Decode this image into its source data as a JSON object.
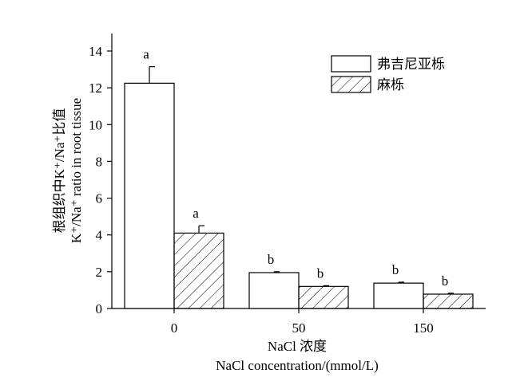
{
  "chart_data": {
    "type": "bar",
    "ylabel_zh": "根组织中K⁺/Na⁺比值",
    "ylabel_en": "K⁺/Na⁺ ratio in root tissue",
    "xlabel_zh": "NaCl 浓度",
    "xlabel_en": "NaCl concentration/(mmol/L)",
    "ylim": [
      0,
      15
    ],
    "yticks": [
      0,
      2,
      4,
      6,
      8,
      10,
      12,
      14
    ],
    "categories": [
      "0",
      "50",
      "150"
    ],
    "series": [
      {
        "name": "弗吉尼亚栎",
        "pattern": "open",
        "values": [
          12.25,
          1.95,
          1.38
        ],
        "errors": [
          0.9,
          0.05,
          0.05
        ],
        "letters": [
          "a",
          "b",
          "b"
        ]
      },
      {
        "name": "麻栎",
        "pattern": "hatched",
        "values": [
          4.1,
          1.2,
          0.78
        ],
        "errors": [
          0.4,
          0.04,
          0.05
        ],
        "letters": [
          "a",
          "b",
          "b"
        ]
      }
    ],
    "legend_position": "top-right",
    "grid": false
  }
}
